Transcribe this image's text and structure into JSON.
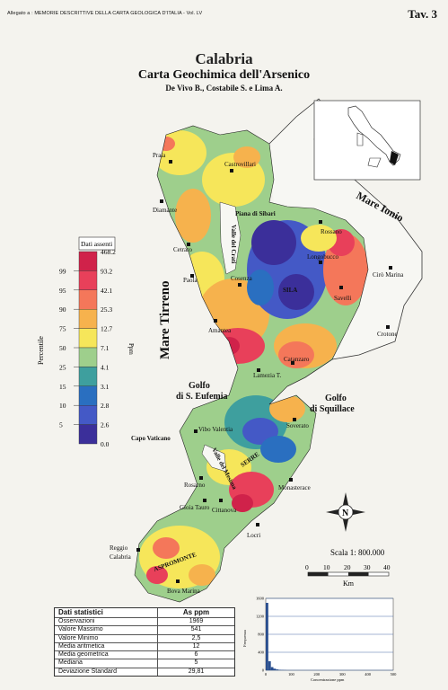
{
  "header": {
    "left": "Allegato a : MEMORIE DESCRITTIVE DELLA CARTA GEOLOGICA D'ITALIA - Vol. LV",
    "right": "Tav. 3"
  },
  "title": "Calabria",
  "subtitle": "Carta Geochimica dell'Arsenico",
  "authors": "De Vivo B., Costabile S. e Lima A.",
  "legend": {
    "absent_label": "Dati assenti",
    "percentile_label": "Percentile",
    "unit_label": "Ppm",
    "percentiles": [
      "99",
      "95",
      "90",
      "75",
      "50",
      "25",
      "15",
      "10",
      "5"
    ],
    "breaks": [
      "468.2",
      "93.2",
      "42.1",
      "25.3",
      "12.7",
      "7.1",
      "4.1",
      "3.1",
      "2.8",
      "2.6",
      "0.0"
    ],
    "colors": [
      "#d0224a",
      "#e8405a",
      "#f4775a",
      "#f6b24d",
      "#f6e65a",
      "#9ecf8c",
      "#3e9f9e",
      "#2a6fc0",
      "#4459c6",
      "#3b2f9a"
    ]
  },
  "seas": {
    "tirreno": "Mare Tirreno",
    "ionio": "Mare Ionio",
    "gulf_s_eufemia": "Golfo\ndi S. Eufemia",
    "gulf_s_eufemia_1": "Golfo",
    "gulf_s_eufemia_2": "di S. Eufemia",
    "gulf_squillace_1": "Golfo",
    "gulf_squillace_2": "di Squillace"
  },
  "places": {
    "praia": "Praia",
    "castrovillari": "Castrovillari",
    "diamante": "Diamante",
    "piana_sibari": "Piana di Sibari",
    "rossano": "Rossano",
    "valle_crati": "Valle del Crati",
    "cetraro": "Cetraro",
    "longobucco": "Longobucco",
    "paola": "Paola",
    "cosenza": "Cosenza",
    "sila": "SILA",
    "savelli": "Savelli",
    "ciro_marina": "Cirò Marina",
    "amantea": "Amantea",
    "crotone": "Crotone",
    "catanzaro": "Catanzaro",
    "lamezia": "Lamezia T.",
    "vibo": "Vibo Valentia",
    "soverato": "Soverato",
    "capo_vaticano": "Capo Vaticano",
    "valle_mesima": "Valle del Mesima",
    "serre": "SERRE",
    "rosarno": "Rosarno",
    "gioia_tauro": "Gioia Tauro",
    "monasterace": "Monasterace",
    "cittanova": "Cittanova",
    "locri": "Locri",
    "reggio_1": "Reggio",
    "reggio_2": "Calabria",
    "aspromonte": "ASPROMONTE",
    "bova_marina": "Bova Marina"
  },
  "north": "N",
  "scale": {
    "label": "Scala 1: 800.000",
    "ticks": [
      "0",
      "10",
      "20",
      "30",
      "40"
    ],
    "unit": "Km"
  },
  "stats": {
    "title": "Dati statistici",
    "unit_header": "As ppm",
    "rows": [
      {
        "k": "Osservazioni",
        "v": "1969"
      },
      {
        "k": "Valore Massimo",
        "v": "541"
      },
      {
        "k": "Valore Minimo",
        "v": "2,5"
      },
      {
        "k": "Media aritmetica",
        "v": "12"
      },
      {
        "k": "Media geometrica",
        "v": "6"
      },
      {
        "k": "Mediana",
        "v": "5"
      },
      {
        "k": "Deviazione Standard",
        "v": "29,81"
      }
    ]
  },
  "histogram": {
    "ylabel": "Frequenza",
    "xlabel": "Concentrazione ppm",
    "yticks": [
      "0",
      "400",
      "800",
      "1200",
      "1600"
    ],
    "xticks": [
      "0",
      "100",
      "200",
      "300",
      "400",
      "500"
    ],
    "bins": [
      0,
      10,
      20,
      30,
      40,
      50,
      60,
      70
    ],
    "values": [
      1500,
      200,
      70,
      35,
      18,
      10,
      6,
      3
    ],
    "ylim": [
      0,
      1600
    ],
    "xlim": [
      0,
      500
    ]
  }
}
